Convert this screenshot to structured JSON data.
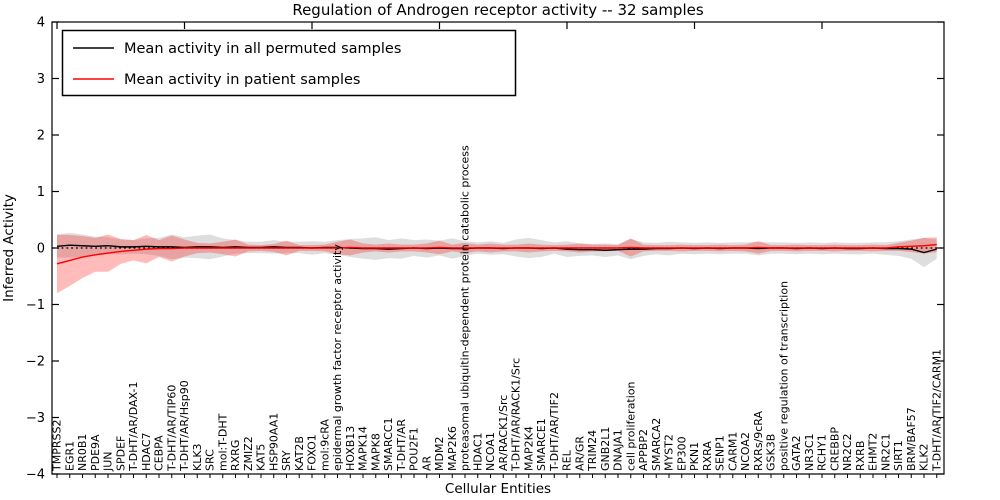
{
  "figure": {
    "background": "#ffffff"
  },
  "chart_data": {
    "type": "line",
    "title": "Regulation of Androgen receptor activity -- 32 samples",
    "xlabel": "Cellular Entities",
    "ylabel": "Inferred Activity",
    "ylim": [
      -4,
      4
    ],
    "yticks": [
      4,
      3,
      2,
      1,
      0,
      -1,
      -2,
      -3,
      -4
    ],
    "grid": false,
    "legend_position": "upper left",
    "zero_line": "dotted",
    "top_tick_interval": 10,
    "categories": [
      "TMPRSS2",
      "EGR1",
      "NR0B1",
      "PDE9A",
      "JUN",
      "SPDEF",
      "T-DHT/AR/DAX-1",
      "HDAC7",
      "CEBPA",
      "T-DHT/AR/TIP60",
      "T-DHT/AR/Hsp90",
      "KLK3",
      "SRC",
      "mol:T-DHT",
      "RXRG",
      "ZMIZ2",
      "KAT5",
      "HSP90AA1",
      "SRY",
      "KAT2B",
      "FOXO1",
      "mol:9cRA",
      "epidermal growth factor receptor activity",
      "HOXB13",
      "MAPK14",
      "MAPK8",
      "SMARCC1",
      "T-DHT/AR",
      "POU2F1",
      "AR",
      "MDM2",
      "MAP2K6",
      "proteasomal ubiquitin-dependent protein catabolic process",
      "HDAC1",
      "NCOA1",
      "AR/RACK1/Src",
      "T-DHT/AR/RACK1/Src",
      "MAP2K4",
      "SMARCE1",
      "T-DHT/AR/TIF2",
      "REL",
      "AR/GR",
      "TRIM24",
      "GNB2L1",
      "DNAJA1",
      "cell proliferation",
      "APPBP2",
      "SMARCA2",
      "MYST2",
      "EP300",
      "PKN1",
      "RXRA",
      "SENP1",
      "CARM1",
      "NCOA2",
      "RXRs/9cRA",
      "GSK3B",
      "positive regulation of transcription",
      "GATA2",
      "NR3C1",
      "RCHY1",
      "CREBBP",
      "NR2C2",
      "RXRB",
      "EHMT2",
      "NR2C1",
      "SIRT1",
      "BRM/BAF57",
      "KLK2",
      "T-DHT/AR/TIF2/CARM1"
    ],
    "series": [
      {
        "name": "Mean activity in all permuted samples",
        "color": "#000000",
        "band_color": "#999999",
        "band_opacity": 0.32,
        "values": [
          0.03,
          0.05,
          0.04,
          0.03,
          0.04,
          0.02,
          0.02,
          0.03,
          0.02,
          0.02,
          0.01,
          0.02,
          0.02,
          0.01,
          0.02,
          0.01,
          0.01,
          0.02,
          0.01,
          0.01,
          0.0,
          0.01,
          0.01,
          0.0,
          -0.01,
          -0.01,
          -0.02,
          -0.01,
          0.0,
          -0.01,
          0.0,
          -0.01,
          -0.01,
          0.0,
          0.0,
          -0.01,
          0.0,
          0.0,
          -0.01,
          0.0,
          -0.02,
          -0.03,
          -0.03,
          -0.04,
          -0.03,
          -0.02,
          -0.02,
          -0.01,
          -0.01,
          0.0,
          -0.01,
          0.0,
          -0.01,
          0.0,
          0.0,
          -0.01,
          0.0,
          0.0,
          -0.01,
          0.0,
          -0.01,
          0.0,
          -0.01,
          -0.01,
          0.0,
          -0.01,
          -0.01,
          -0.02,
          -0.08,
          -0.02
        ],
        "band_halfwidth": [
          0.2,
          0.22,
          0.2,
          0.17,
          0.15,
          0.13,
          0.12,
          0.14,
          0.16,
          0.22,
          0.18,
          0.2,
          0.22,
          0.16,
          0.12,
          0.1,
          0.1,
          0.12,
          0.1,
          0.1,
          0.12,
          0.1,
          0.13,
          0.16,
          0.18,
          0.2,
          0.16,
          0.18,
          0.14,
          0.16,
          0.13,
          0.18,
          0.13,
          0.1,
          0.12,
          0.1,
          0.15,
          0.18,
          0.15,
          0.1,
          0.14,
          0.11,
          0.1,
          0.12,
          0.1,
          0.18,
          0.12,
          0.1,
          0.12,
          0.1,
          0.1,
          0.1,
          0.1,
          0.1,
          0.1,
          0.12,
          0.1,
          0.1,
          0.1,
          0.1,
          0.1,
          0.1,
          0.1,
          0.1,
          0.1,
          0.11,
          0.13,
          0.17,
          0.26,
          0.17
        ]
      },
      {
        "name": "Mean activity in patient samples",
        "color": "#ff0000",
        "band_color": "#ff0000",
        "band_opacity": 0.27,
        "values": [
          -0.28,
          -0.22,
          -0.16,
          -0.12,
          -0.09,
          -0.06,
          -0.04,
          -0.02,
          -0.01,
          -0.01,
          0.0,
          0.0,
          0.0,
          0.0,
          0.0,
          0.0,
          0.0,
          0.0,
          0.0,
          0.0,
          0.0,
          0.0,
          0.0,
          0.01,
          0.0,
          0.0,
          0.0,
          0.0,
          0.0,
          0.0,
          0.01,
          0.0,
          0.0,
          0.0,
          0.0,
          0.0,
          0.0,
          0.0,
          0.0,
          0.0,
          0.0,
          0.0,
          0.0,
          0.0,
          0.0,
          0.01,
          0.0,
          0.0,
          0.0,
          0.0,
          0.0,
          0.0,
          0.0,
          0.0,
          0.0,
          0.01,
          0.0,
          0.0,
          0.0,
          0.0,
          0.0,
          0.0,
          0.0,
          0.0,
          0.0,
          0.0,
          0.02,
          0.03,
          0.04,
          0.06
        ],
        "band_halfwidth": [
          0.52,
          0.45,
          0.37,
          0.3,
          0.33,
          0.22,
          0.18,
          0.25,
          0.15,
          0.23,
          0.15,
          0.09,
          0.08,
          0.11,
          0.15,
          0.06,
          0.05,
          0.07,
          0.13,
          0.05,
          0.05,
          0.06,
          0.11,
          0.14,
          0.08,
          0.06,
          0.08,
          0.06,
          0.06,
          0.08,
          0.12,
          0.06,
          0.09,
          0.06,
          0.08,
          0.06,
          0.06,
          0.08,
          0.06,
          0.05,
          0.06,
          0.08,
          0.06,
          0.06,
          0.05,
          0.16,
          0.06,
          0.05,
          0.05,
          0.06,
          0.05,
          0.05,
          0.06,
          0.05,
          0.06,
          0.11,
          0.05,
          0.05,
          0.06,
          0.05,
          0.05,
          0.06,
          0.05,
          0.05,
          0.06,
          0.05,
          0.07,
          0.1,
          0.14,
          0.13
        ]
      }
    ]
  }
}
